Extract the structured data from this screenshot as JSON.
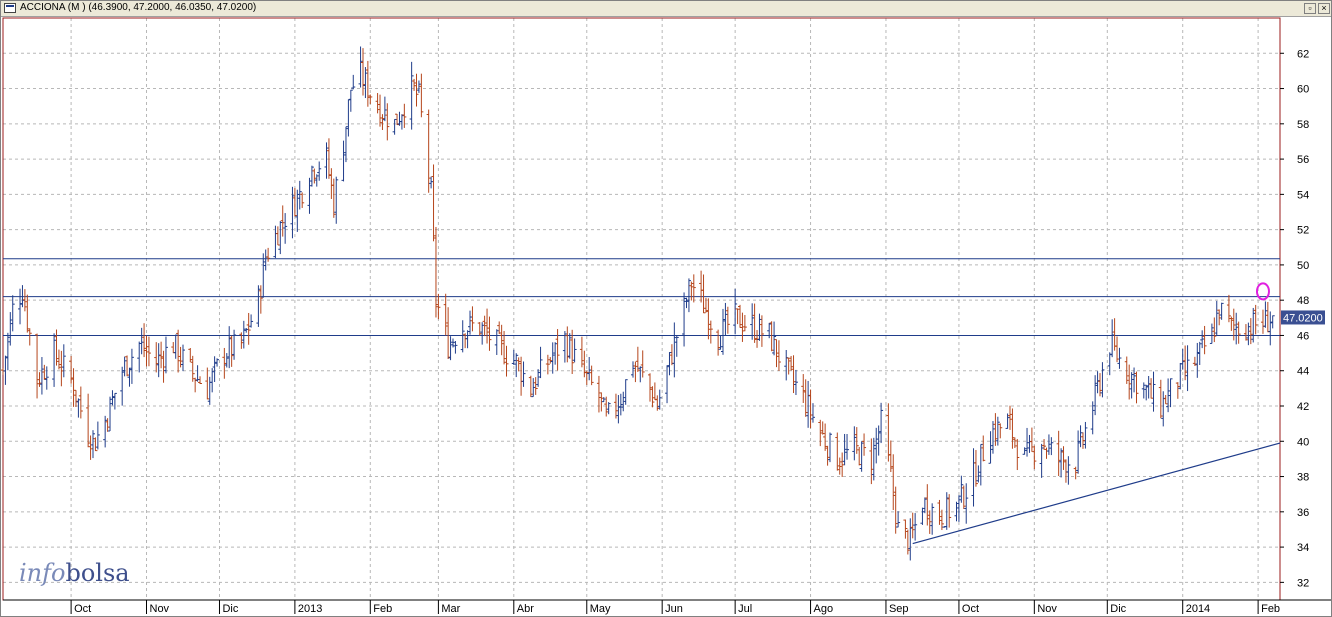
{
  "window": {
    "title": "ACCIONA (M ) (46.3900, 47.2000, 46.0350, 47.0200)",
    "buttons": {
      "restore": "▫",
      "close": "×"
    }
  },
  "watermark": {
    "part1": "info",
    "part2": "bolsa"
  },
  "last_price_label": "47.0200",
  "colors": {
    "up": "#1f3c8a",
    "down": "#b5451b",
    "grid": "#b8b8b8",
    "trend": "#1f3c8a",
    "marker": "#e020e0",
    "frame": "#9b1b1b"
  },
  "chart_data": {
    "type": "ohlc",
    "title": "ACCIONA (M )",
    "ohlc_last": {
      "open": 46.39,
      "high": 47.2,
      "low": 46.035,
      "close": 47.02
    },
    "y_axis": {
      "min": 31,
      "max": 64,
      "ticks": [
        32,
        34,
        36,
        38,
        40,
        42,
        44,
        46,
        48,
        50,
        52,
        54,
        56,
        58,
        60,
        62
      ],
      "side": "right"
    },
    "x_axis": {
      "range": [
        "2012-09-03",
        "2014-02-10"
      ],
      "labels": [
        {
          "label": "Oct",
          "date": "2012-10-01"
        },
        {
          "label": "Nov",
          "date": "2012-11-01"
        },
        {
          "label": "Dic",
          "date": "2012-12-01"
        },
        {
          "label": "2013",
          "date": "2013-01-01"
        },
        {
          "label": "Feb",
          "date": "2013-02-01"
        },
        {
          "label": "Mar",
          "date": "2013-03-01"
        },
        {
          "label": "Abr",
          "date": "2013-04-01"
        },
        {
          "label": "May",
          "date": "2013-05-01"
        },
        {
          "label": "Jun",
          "date": "2013-06-01"
        },
        {
          "label": "Jul",
          "date": "2013-07-01"
        },
        {
          "label": "Ago",
          "date": "2013-08-01"
        },
        {
          "label": "Sep",
          "date": "2013-09-01"
        },
        {
          "label": "Oct",
          "date": "2013-10-01"
        },
        {
          "label": "Nov",
          "date": "2013-11-01"
        },
        {
          "label": "Dic",
          "date": "2013-12-01"
        },
        {
          "label": "2014",
          "date": "2014-01-01"
        },
        {
          "label": "Feb",
          "date": "2014-02-01"
        }
      ]
    },
    "price_path": [
      {
        "d": "2012-09-03",
        "v": 44.0
      },
      {
        "d": "2012-09-07",
        "v": 47.5
      },
      {
        "d": "2012-09-11",
        "v": 48.6
      },
      {
        "d": "2012-09-17",
        "v": 43.5
      },
      {
        "d": "2012-09-24",
        "v": 45.0
      },
      {
        "d": "2012-10-01",
        "v": 43.5
      },
      {
        "d": "2012-10-08",
        "v": 40.5
      },
      {
        "d": "2012-10-11",
        "v": 40.0
      },
      {
        "d": "2012-10-16",
        "v": 41.5
      },
      {
        "d": "2012-10-22",
        "v": 44.0
      },
      {
        "d": "2012-10-29",
        "v": 45.5
      },
      {
        "d": "2012-11-05",
        "v": 44.5
      },
      {
        "d": "2012-11-12",
        "v": 45.5
      },
      {
        "d": "2012-11-19",
        "v": 44.0
      },
      {
        "d": "2012-11-26",
        "v": 43.0
      },
      {
        "d": "2012-12-03",
        "v": 45.0
      },
      {
        "d": "2012-12-10",
        "v": 45.5
      },
      {
        "d": "2012-12-13",
        "v": 46.5
      },
      {
        "d": "2012-12-17",
        "v": 48.0
      },
      {
        "d": "2012-12-20",
        "v": 50.5
      },
      {
        "d": "2012-12-27",
        "v": 52.5
      },
      {
        "d": "2013-01-03",
        "v": 54.0
      },
      {
        "d": "2013-01-08",
        "v": 55.5
      },
      {
        "d": "2013-01-14",
        "v": 56.0
      },
      {
        "d": "2013-01-17",
        "v": 53.5
      },
      {
        "d": "2013-01-21",
        "v": 57.0
      },
      {
        "d": "2013-01-24",
        "v": 60.0
      },
      {
        "d": "2013-01-28",
        "v": 60.8
      },
      {
        "d": "2013-02-04",
        "v": 59.0
      },
      {
        "d": "2013-02-11",
        "v": 58.0
      },
      {
        "d": "2013-02-18",
        "v": 60.0
      },
      {
        "d": "2013-02-21",
        "v": 59.5
      },
      {
        "d": "2013-02-26",
        "v": 54.0
      },
      {
        "d": "2013-02-28",
        "v": 48.0
      },
      {
        "d": "2013-03-05",
        "v": 45.5
      },
      {
        "d": "2013-03-11",
        "v": 46.5
      },
      {
        "d": "2013-03-18",
        "v": 46.5
      },
      {
        "d": "2013-03-25",
        "v": 45.5
      },
      {
        "d": "2013-04-02",
        "v": 44.5
      },
      {
        "d": "2013-04-08",
        "v": 43.0
      },
      {
        "d": "2013-04-15",
        "v": 44.5
      },
      {
        "d": "2013-04-22",
        "v": 45.8
      },
      {
        "d": "2013-04-29",
        "v": 44.0
      },
      {
        "d": "2013-05-06",
        "v": 42.5
      },
      {
        "d": "2013-05-09",
        "v": 41.2
      },
      {
        "d": "2013-05-15",
        "v": 42.5
      },
      {
        "d": "2013-05-20",
        "v": 44.5
      },
      {
        "d": "2013-05-27",
        "v": 43.0
      },
      {
        "d": "2013-05-30",
        "v": 42.0
      },
      {
        "d": "2013-06-03",
        "v": 44.0
      },
      {
        "d": "2013-06-07",
        "v": 46.0
      },
      {
        "d": "2013-06-10",
        "v": 47.5
      },
      {
        "d": "2013-06-13",
        "v": 49.0
      },
      {
        "d": "2013-06-17",
        "v": 48.0
      },
      {
        "d": "2013-06-24",
        "v": 46.0
      },
      {
        "d": "2013-07-01",
        "v": 47.0
      },
      {
        "d": "2013-07-08",
        "v": 46.5
      },
      {
        "d": "2013-07-15",
        "v": 46.0
      },
      {
        "d": "2013-07-22",
        "v": 44.0
      },
      {
        "d": "2013-07-29",
        "v": 42.5
      },
      {
        "d": "2013-08-05",
        "v": 40.5
      },
      {
        "d": "2013-08-12",
        "v": 39.0
      },
      {
        "d": "2013-08-19",
        "v": 39.5
      },
      {
        "d": "2013-08-26",
        "v": 39.0
      },
      {
        "d": "2013-08-30",
        "v": 41.0
      },
      {
        "d": "2013-09-03",
        "v": 38.0
      },
      {
        "d": "2013-09-06",
        "v": 35.0
      },
      {
        "d": "2013-09-11",
        "v": 34.3
      },
      {
        "d": "2013-09-16",
        "v": 36.5
      },
      {
        "d": "2013-09-23",
        "v": 35.8
      },
      {
        "d": "2013-09-30",
        "v": 36.3
      },
      {
        "d": "2013-10-07",
        "v": 38.0
      },
      {
        "d": "2013-10-14",
        "v": 40.5
      },
      {
        "d": "2013-10-21",
        "v": 41.0
      },
      {
        "d": "2013-10-28",
        "v": 39.0
      },
      {
        "d": "2013-11-04",
        "v": 40.0
      },
      {
        "d": "2013-11-11",
        "v": 39.0
      },
      {
        "d": "2013-11-18",
        "v": 38.8
      },
      {
        "d": "2013-11-25",
        "v": 42.0
      },
      {
        "d": "2013-12-02",
        "v": 45.5
      },
      {
        "d": "2013-12-09",
        "v": 44.0
      },
      {
        "d": "2013-12-16",
        "v": 43.0
      },
      {
        "d": "2013-12-23",
        "v": 42.0
      },
      {
        "d": "2013-12-30",
        "v": 43.5
      },
      {
        "d": "2014-01-06",
        "v": 44.5
      },
      {
        "d": "2014-01-13",
        "v": 46.0
      },
      {
        "d": "2014-01-16",
        "v": 47.5
      },
      {
        "d": "2014-01-21",
        "v": 46.5
      },
      {
        "d": "2014-01-28",
        "v": 46.5
      },
      {
        "d": "2014-02-04",
        "v": 46.8
      },
      {
        "d": "2014-02-07",
        "v": 47.0
      }
    ],
    "reference_lines": [
      {
        "type": "horizontal",
        "y": 50.35
      },
      {
        "type": "horizontal",
        "y": 48.2
      },
      {
        "type": "horizontal",
        "y": 46.0
      },
      {
        "type": "trend",
        "from": {
          "d": "2013-09-12",
          "y": 34.2
        },
        "to": {
          "d": "2014-02-10",
          "y": 39.9
        }
      }
    ],
    "marker": {
      "d": "2014-02-03",
      "y": 48.5,
      "shape": "ellipse"
    },
    "grid": true
  }
}
